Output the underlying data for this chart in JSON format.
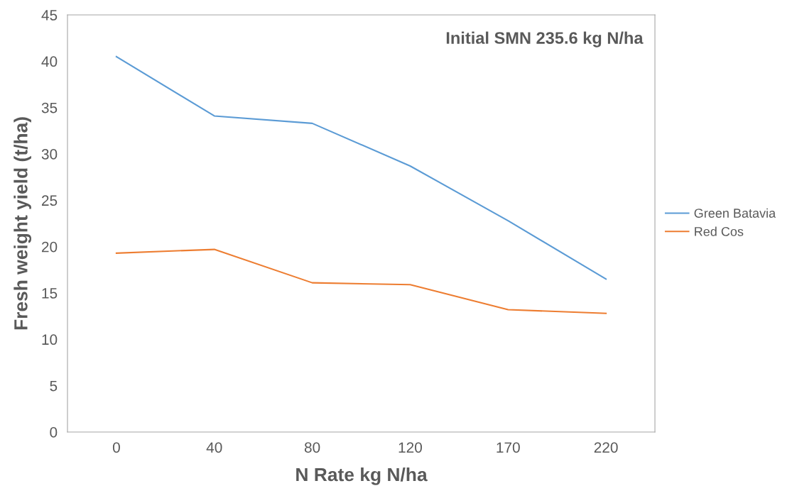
{
  "chart_data": {
    "type": "line",
    "xlabel": "N Rate kg N/ha",
    "ylabel": "Fresh weight yield (t/ha)",
    "annotations": [
      "Initial SMN 235.6 kg N/ha"
    ],
    "categories": [
      "0",
      "40",
      "80",
      "120",
      "170",
      "220"
    ],
    "series": [
      {
        "name": "Green Batavia",
        "color": "#5b9bd5",
        "values": [
          40.5,
          34.1,
          33.3,
          28.7,
          22.8,
          16.5
        ]
      },
      {
        "name": "Red Cos",
        "color": "#ed7d31",
        "values": [
          19.3,
          19.7,
          16.1,
          15.9,
          13.2,
          12.8
        ]
      }
    ],
    "ylim": [
      0,
      45
    ],
    "yticks": [
      0,
      5,
      10,
      15,
      20,
      25,
      30,
      35,
      40,
      45
    ],
    "grid": false,
    "legend": "right",
    "marker": "none",
    "line_style": "solid"
  }
}
